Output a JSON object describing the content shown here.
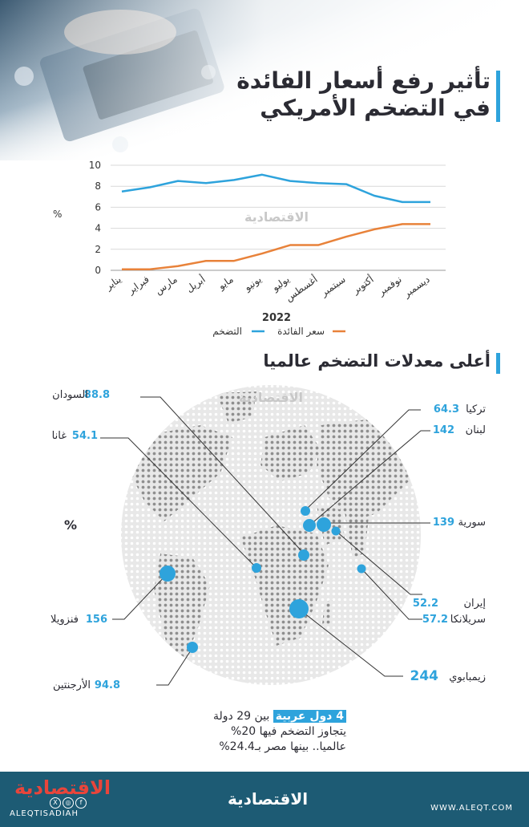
{
  "title_line1": "تأثير رفع أسعار الفائدة",
  "title_line2": "في التضخم الأمريكي",
  "watermark": "الاقتصادية",
  "chart_data": {
    "type": "line",
    "categories": [
      "يناير",
      "فبراير",
      "مارس",
      "أبريل",
      "مايو",
      "يونيو",
      "يوليو",
      "أغسطس",
      "سبتمبر",
      "أكتوبر",
      "نوفمبر",
      "ديسمبر"
    ],
    "series": [
      {
        "name": "التضخم",
        "color": "#2ea3dc",
        "values": [
          7.5,
          7.9,
          8.5,
          8.3,
          8.6,
          9.1,
          8.5,
          8.3,
          8.2,
          7.1,
          6.5,
          6.5
        ]
      },
      {
        "name": "سعر الفائدة",
        "color": "#e8823a",
        "values": [
          0.1,
          0.1,
          0.4,
          0.9,
          0.9,
          1.6,
          2.4,
          2.4,
          3.2,
          3.9,
          4.4,
          4.4
        ]
      }
    ],
    "yticks": [
      0,
      2,
      4,
      6,
      8,
      10
    ],
    "ylim": [
      0,
      10
    ],
    "ylabel": "%",
    "xlabel": "2022",
    "grid": true,
    "legend_position": "bottom"
  },
  "map_section": {
    "title": "أعلى معدلات التضخم عالميا",
    "unit": "%",
    "countries": [
      {
        "name": "السودان",
        "value": "88.8"
      },
      {
        "name": "غانا",
        "value": "54.1"
      },
      {
        "name": "تركيا",
        "value": "64.3"
      },
      {
        "name": "لبنان",
        "value": "142"
      },
      {
        "name": "سورية",
        "value": "139"
      },
      {
        "name": "إيران",
        "value": "52.2"
      },
      {
        "name": "سريلانكا",
        "value": "57.2"
      },
      {
        "name": "فنزويلا",
        "value": "156"
      },
      {
        "name": "الأرجنتين",
        "value": "94.8"
      },
      {
        "name": "زيمبابوي",
        "value": "244"
      }
    ]
  },
  "note": {
    "highlight": "4 دول عربية",
    "line1_rest": "بين 29 دولة",
    "line2": "يتجاوز التضخم فيها 20%",
    "line3": "عالميا.. بينها مصر بـ24.4%"
  },
  "footer": {
    "brand": "الاقتصادية",
    "handle": "ALEQTISADIAH",
    "site": "WWW.ALEQT.COM"
  },
  "colors": {
    "accent": "#2ea3dc",
    "orange": "#e8823a",
    "footer": "#1d5b74"
  }
}
